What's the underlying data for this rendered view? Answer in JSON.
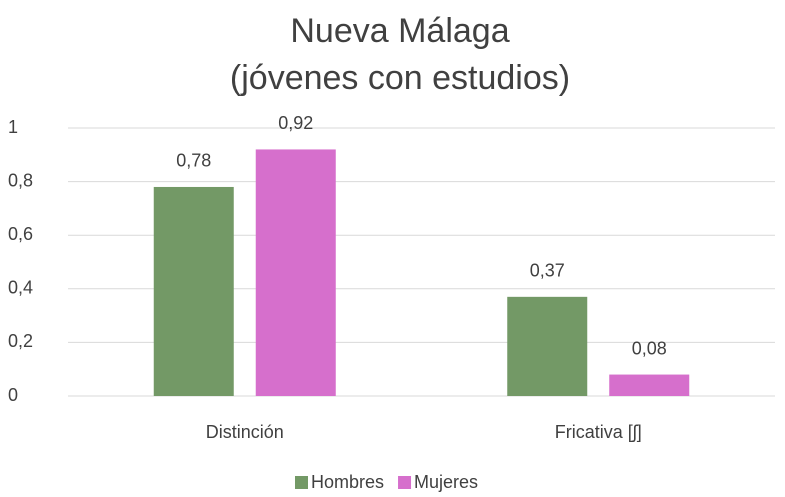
{
  "chart_data": {
    "type": "bar",
    "title": [
      "Nueva Málaga",
      "(jóvenes con estudios)"
    ],
    "categories": [
      "Distinción",
      "Fricativa [ʃ]"
    ],
    "series": [
      {
        "name": "Hombres",
        "color": "#739966",
        "values": [
          0.78,
          0.37
        ],
        "value_labels": [
          "0,78",
          "0,37"
        ]
      },
      {
        "name": "Mujeres",
        "color": "#d66fcc",
        "values": [
          0.92,
          0.08
        ],
        "value_labels": [
          "0,92",
          "0,08"
        ]
      }
    ],
    "ylim": [
      0,
      1
    ],
    "yticks": [
      0,
      {
        "value": 0.2,
        "label": "0,2"
      },
      {
        "value": 0.4,
        "label": "0,4"
      },
      {
        "value": 0.6,
        "label": "0,6"
      },
      {
        "value": 0.8,
        "label": "0,8"
      },
      1
    ],
    "grid": true,
    "legend": "bottom"
  }
}
